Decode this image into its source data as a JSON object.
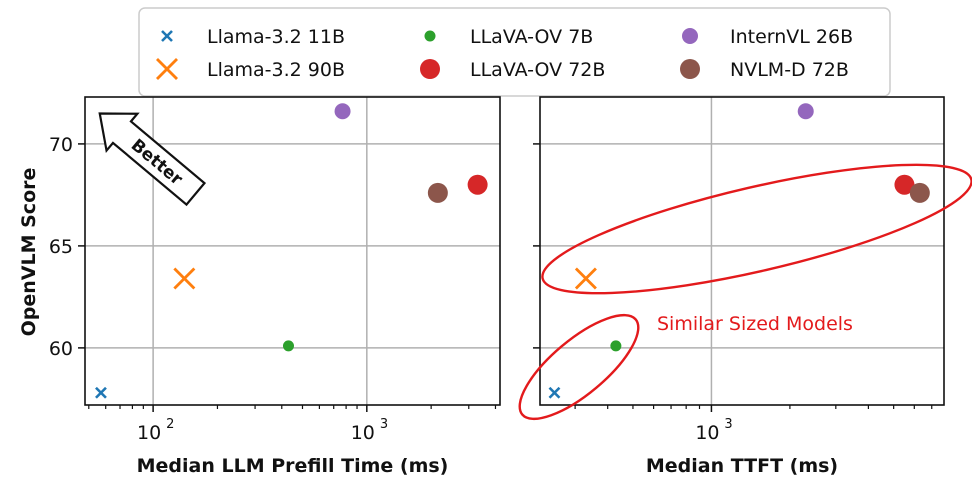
{
  "legend": {
    "items": [
      {
        "label": "Llama-3.2 11B",
        "color": "#1f77b4",
        "marker": "x-small"
      },
      {
        "label": "LLaVA-OV 7B",
        "color": "#2ca02c",
        "marker": "dot-small"
      },
      {
        "label": "InternVL 26B",
        "color": "#9467bd",
        "marker": "dot-medium"
      },
      {
        "label": "Llama-3.2 90B",
        "color": "#ff7f0e",
        "marker": "x-large"
      },
      {
        "label": "LLaVA-OV 72B",
        "color": "#d62728",
        "marker": "dot-large"
      },
      {
        "label": "NVLM-D 72B",
        "color": "#8c564b",
        "marker": "dot-large"
      }
    ]
  },
  "annotations": {
    "better": "Better",
    "similar": "Similar Sized Models"
  },
  "chart_data": [
    {
      "type": "scatter",
      "xscale": "log",
      "xlabel": "Median LLM Prefill Time (ms)",
      "ylabel": "OpenVLM Score",
      "xlim": [
        48,
        4200
      ],
      "ylim": [
        57.2,
        72.3
      ],
      "yticks": [
        60,
        65,
        70
      ],
      "xticks": [
        {
          "value": 100,
          "base": "10",
          "exp": "2"
        },
        {
          "value": 1000,
          "base": "10",
          "exp": "3"
        }
      ],
      "grid": true,
      "series": [
        {
          "name": "Llama-3.2 11B",
          "x": 57,
          "y": 57.8
        },
        {
          "name": "Llama-3.2 90B",
          "x": 140,
          "y": 63.4
        },
        {
          "name": "LLaVA-OV 7B",
          "x": 430,
          "y": 60.1
        },
        {
          "name": "InternVL 26B",
          "x": 770,
          "y": 71.6
        },
        {
          "name": "NVLM-D 72B",
          "x": 2150,
          "y": 67.6
        },
        {
          "name": "LLaVA-OV 72B",
          "x": 3300,
          "y": 68.0
        }
      ]
    },
    {
      "type": "scatter",
      "xscale": "log",
      "xlabel": "Median TTFT (ms)",
      "ylabel": "",
      "xlim": [
        220,
        7800
      ],
      "ylim": [
        57.2,
        72.3
      ],
      "yticks": [
        60,
        65,
        70
      ],
      "xticks": [
        {
          "value": 1000,
          "base": "10",
          "exp": "3"
        }
      ],
      "grid": true,
      "series": [
        {
          "name": "Llama-3.2 11B",
          "x": 250,
          "y": 57.8
        },
        {
          "name": "Llama-3.2 90B",
          "x": 330,
          "y": 63.4
        },
        {
          "name": "LLaVA-OV 7B",
          "x": 430,
          "y": 60.1
        },
        {
          "name": "InternVL 26B",
          "x": 2300,
          "y": 71.6
        },
        {
          "name": "LLaVA-OV 72B",
          "x": 5500,
          "y": 68.0
        },
        {
          "name": "NVLM-D 72B",
          "x": 6300,
          "y": 67.6
        }
      ]
    }
  ]
}
